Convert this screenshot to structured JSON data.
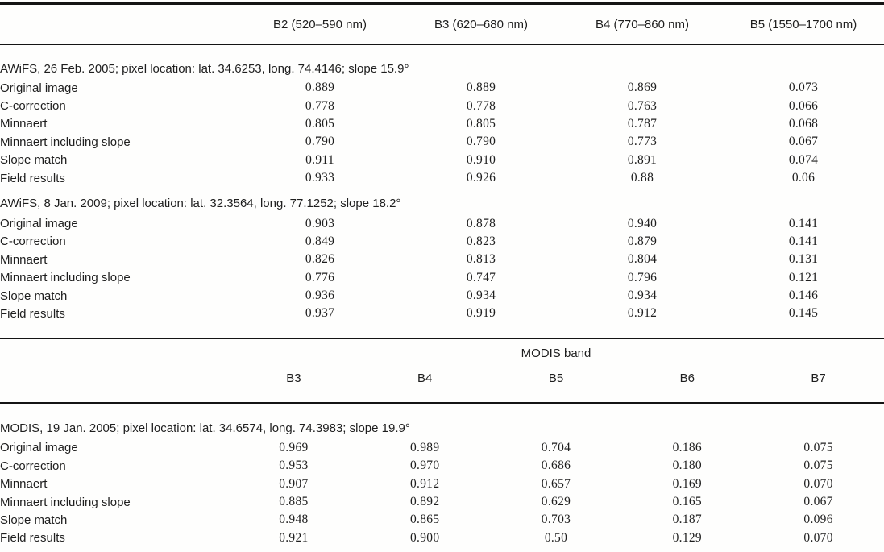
{
  "page": {
    "background": "#fefefd",
    "text_color": "#1e1e1e",
    "rule_color": "#141414"
  },
  "awifs": {
    "columns": [
      "B2 (520–590 nm)",
      "B3 (620–680 nm)",
      "B4 (770–860 nm)",
      "B5 (1550–1700 nm)"
    ],
    "sections": [
      {
        "title": "AWiFS, 26 Feb. 2005; pixel location: lat. 34.6253, long. 74.4146; slope 15.9°",
        "rows": [
          {
            "label": "Original image",
            "values": [
              "0.889",
              "0.889",
              "0.869",
              "0.073"
            ]
          },
          {
            "label": "C-correction",
            "values": [
              "0.778",
              "0.778",
              "0.763",
              "0.066"
            ]
          },
          {
            "label": "Minnaert",
            "values": [
              "0.805",
              "0.805",
              "0.787",
              "0.068"
            ]
          },
          {
            "label": "Minnaert including slope",
            "values": [
              "0.790",
              "0.790",
              "0.773",
              "0.067"
            ]
          },
          {
            "label": "Slope match",
            "values": [
              "0.911",
              "0.910",
              "0.891",
              "0.074"
            ]
          },
          {
            "label": "Field results",
            "values": [
              "0.933",
              "0.926",
              "0.88",
              "0.06"
            ]
          }
        ]
      },
      {
        "title": "AWiFS, 8 Jan. 2009; pixel location: lat. 32.3564, long. 77.1252; slope 18.2°",
        "rows": [
          {
            "label": "Original image",
            "values": [
              "0.903",
              "0.878",
              "0.940",
              "0.141"
            ]
          },
          {
            "label": "C-correction",
            "values": [
              "0.849",
              "0.823",
              "0.879",
              "0.141"
            ]
          },
          {
            "label": "Minnaert",
            "values": [
              "0.826",
              "0.813",
              "0.804",
              "0.131"
            ]
          },
          {
            "label": "Minnaert including slope",
            "values": [
              "0.776",
              "0.747",
              "0.796",
              "0.121"
            ]
          },
          {
            "label": "Slope match",
            "values": [
              "0.936",
              "0.934",
              "0.934",
              "0.146"
            ]
          },
          {
            "label": "Field results",
            "values": [
              "0.937",
              "0.919",
              "0.912",
              "0.145"
            ]
          }
        ]
      }
    ]
  },
  "modis": {
    "group_header": "MODIS band",
    "columns": [
      "B3",
      "B4",
      "B5",
      "B6",
      "B7"
    ],
    "sections": [
      {
        "title": "MODIS, 19 Jan. 2005; pixel location: lat. 34.6574, long. 74.3983; slope 19.9°",
        "rows": [
          {
            "label": "Original image",
            "values": [
              "0.969",
              "0.989",
              "0.704",
              "0.186",
              "0.075"
            ]
          },
          {
            "label": "C-correction",
            "values": [
              "0.953",
              "0.970",
              "0.686",
              "0.180",
              "0.075"
            ]
          },
          {
            "label": "Minnaert",
            "values": [
              "0.907",
              "0.912",
              "0.657",
              "0.169",
              "0.070"
            ]
          },
          {
            "label": "Minnaert including slope",
            "values": [
              "0.885",
              "0.892",
              "0.629",
              "0.165",
              "0.067"
            ]
          },
          {
            "label": "Slope match",
            "values": [
              "0.948",
              "0.865",
              "0.703",
              "0.187",
              "0.096"
            ]
          },
          {
            "label": "Field results",
            "values": [
              "0.921",
              "0.900",
              "0.50",
              "0.129",
              "0.070"
            ]
          }
        ]
      }
    ]
  }
}
